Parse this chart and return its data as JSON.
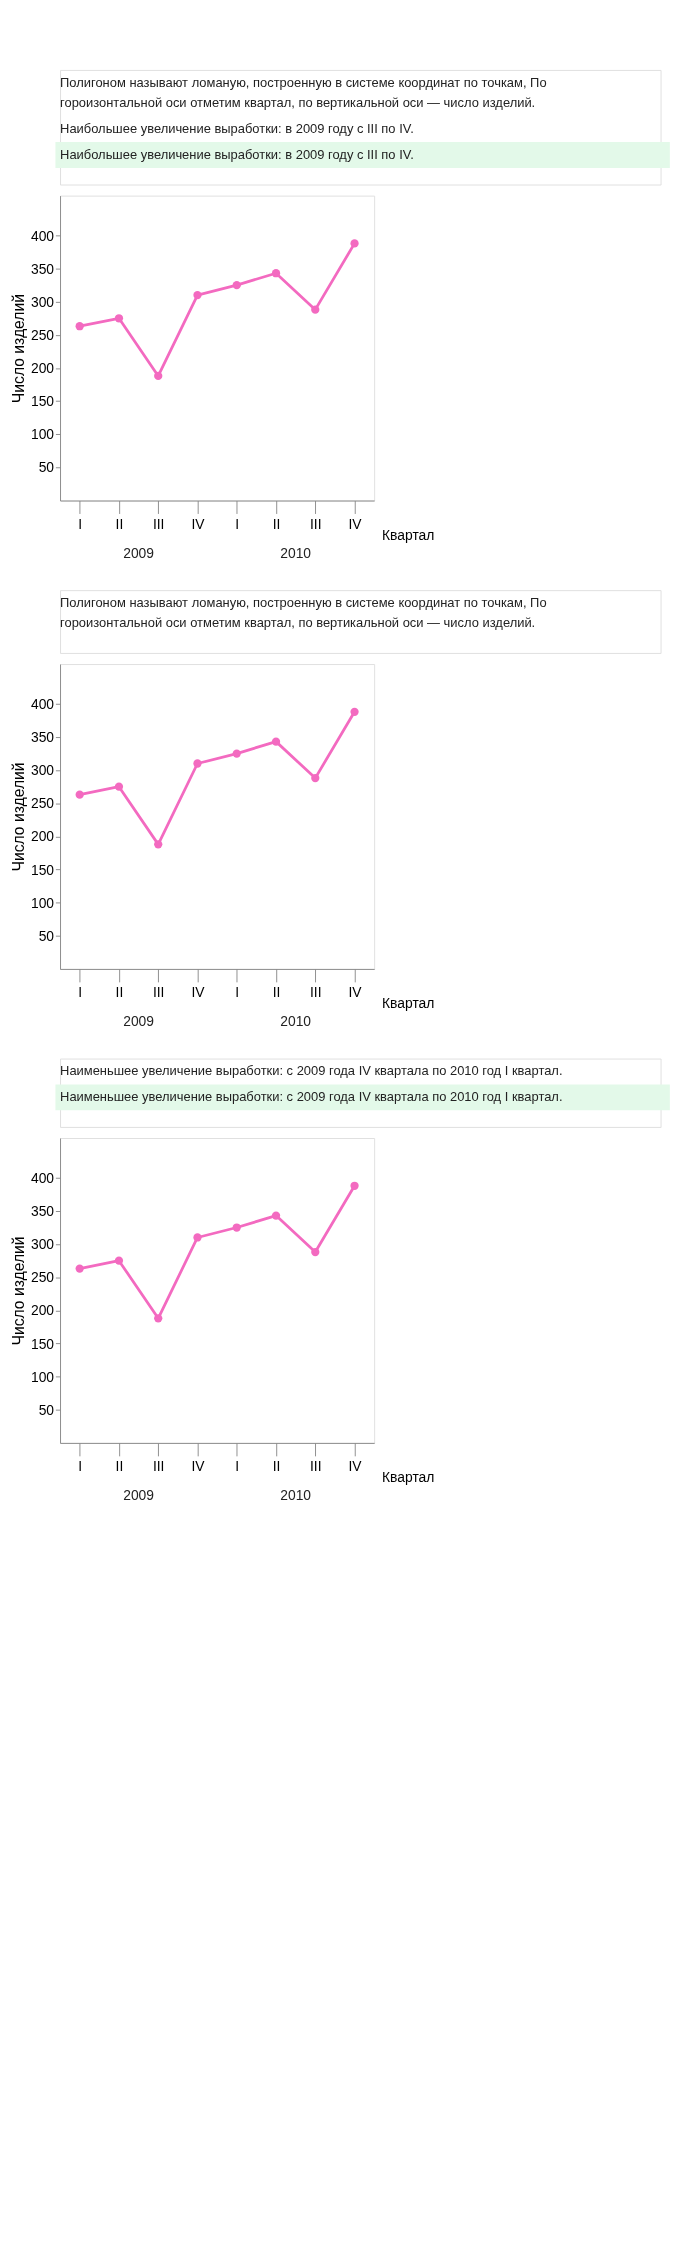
{
  "chart_data": [
    {
      "type": "line",
      "title": "Полигоном называют ломаную, построенную в системе координат по точкам, По гороизонтальной оси отметим квартал, по вертикальной оси — число изделий.",
      "subtitle": "Наибольшее увеличение выработки: в 2009 году с III по IV.",
      "xlabel": "Квартал",
      "ylabel": "Число изделий",
      "categories": [
        "I",
        "II",
        "III",
        "IV",
        "I",
        "II",
        "III",
        "IV"
      ],
      "series": [
        {
          "color": "#f36ac0",
          "values": [
            263,
            275,
            188,
            310,
            325,
            343,
            288,
            388
          ]
        }
      ],
      "ylim": [
        0,
        460
      ],
      "yticks": [
        50,
        100,
        150,
        200,
        250,
        300,
        350,
        400
      ],
      "grid": false,
      "marker": "circle",
      "line_style": "solid",
      "annotations": [
        "2009",
        "2010"
      ]
    },
    {
      "type": "line",
      "title": "Полигоном называют ломаную, построенную в системе координат по точкам, По гороизонтальной оси отметим квартал, по вертикальной оси — число изделий.",
      "xlabel": "Квартал",
      "ylabel": "Число изделий",
      "categories": [
        "I",
        "II",
        "III",
        "IV",
        "I",
        "II",
        "III",
        "IV"
      ],
      "series": [
        {
          "color": "#f36ac0",
          "values": [
            263,
            275,
            188,
            310,
            325,
            343,
            288,
            388
          ]
        }
      ],
      "ylim": [
        0,
        460
      ],
      "yticks": [
        50,
        100,
        150,
        200,
        250,
        300,
        350,
        400
      ],
      "grid": false,
      "marker": "circle",
      "line_style": "solid",
      "annotations": [
        "2009",
        "2010"
      ]
    },
    {
      "type": "line",
      "subtitle": "Наименьшее увеличение выработки: с 2009 года IV квартала по 2010 год I квартал.",
      "xlabel": "Квартал",
      "ylabel": "Число изделий",
      "categories": [
        "I",
        "II",
        "III",
        "IV",
        "I",
        "II",
        "III",
        "IV"
      ],
      "series": [
        {
          "color": "#f36ac0",
          "values": [
            263,
            275,
            188,
            310,
            325,
            343,
            288,
            388
          ]
        }
      ],
      "ylim": [
        0,
        460
      ],
      "yticks": [
        50,
        100,
        150,
        200,
        250,
        300,
        350,
        400
      ],
      "grid": false,
      "marker": "circle",
      "line_style": "solid",
      "annotations": [
        "2009",
        "2010"
      ]
    }
  ]
}
